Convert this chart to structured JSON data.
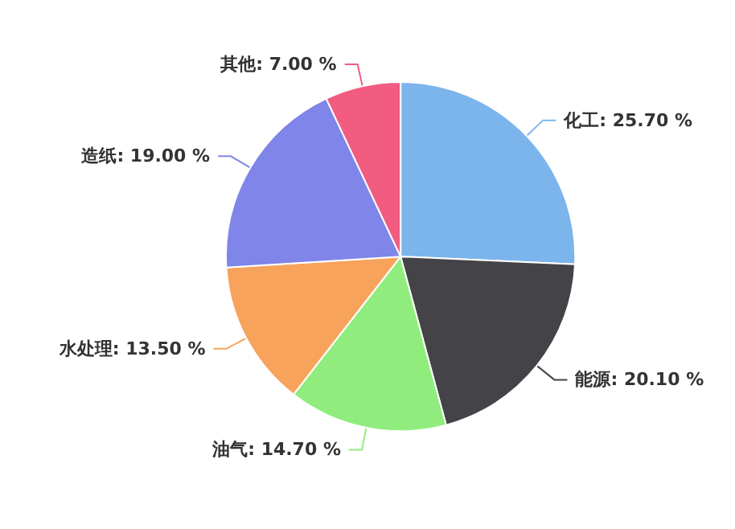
{
  "chart_data": {
    "type": "pie",
    "categories": [
      "化工",
      "能源",
      "油气",
      "水处理",
      "造纸",
      "其他"
    ],
    "values": [
      25.7,
      20.1,
      14.7,
      13.5,
      19.0,
      7.0
    ],
    "value_labels": [
      "25.70 %",
      "20.10 %",
      "14.70 %",
      "13.50 %",
      "19.00 %",
      "7.00 %"
    ],
    "colors": [
      "#7cb5ec",
      "#434348",
      "#90ed7d",
      "#f7a35c",
      "#8085e9",
      "#f15c80"
    ],
    "legend": false
  }
}
